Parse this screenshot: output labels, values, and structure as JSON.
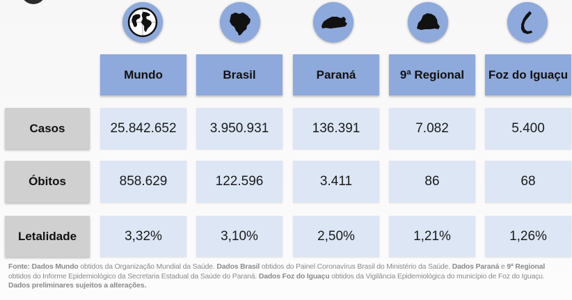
{
  "columns": [
    {
      "label": "Mundo",
      "icon": "globe-icon"
    },
    {
      "label": "Brasil",
      "icon": "brazil-map-icon"
    },
    {
      "label": "Paraná",
      "icon": "parana-map-icon"
    },
    {
      "label": "9ª Regional",
      "icon": "regional-map-icon"
    },
    {
      "label": "Foz do Iguaçu",
      "icon": "foz-map-icon"
    }
  ],
  "rows": [
    {
      "label": "Casos",
      "values": [
        "25.842.652",
        "3.950.931",
        "136.391",
        "7.082",
        "5.400"
      ]
    },
    {
      "label": "Óbitos",
      "values": [
        "858.629",
        "122.596",
        "3.411",
        "86",
        "68"
      ]
    },
    {
      "label": "Letalidade",
      "values": [
        "3,32%",
        "3,10%",
        "2,50%",
        "1,21%",
        "1,26%"
      ]
    }
  ],
  "footnote": {
    "fonte": "Fonte:",
    "mundo_b": "Dados Mundo",
    "mundo_t": " obtidos da Organização Mundial da Saúde. ",
    "brasil_b": "Dados Brasil",
    "brasil_t": " obtidos do Painel Coronavírus Brasil do Ministério da Saúde. ",
    "parana_b": "Dados Paraná",
    "parana_t": " e ",
    "regional_b": "9ª Regional",
    "regional_t": " obtidos do Informe Epidemiológico da Secretaria Estadual da Saúde do Paraná.  ",
    "foz_b": "Dados Foz do Iguaçu",
    "foz_t": " obtidos da Vigilância Epidemiológica do município de Foz do Iguaçu.  ",
    "prelim_b": "Dados preliminares sujeitos a alterações."
  },
  "colors": {
    "header": "#8ea9db",
    "cell": "#dce6f5",
    "row_label": "#d0d0d0"
  }
}
